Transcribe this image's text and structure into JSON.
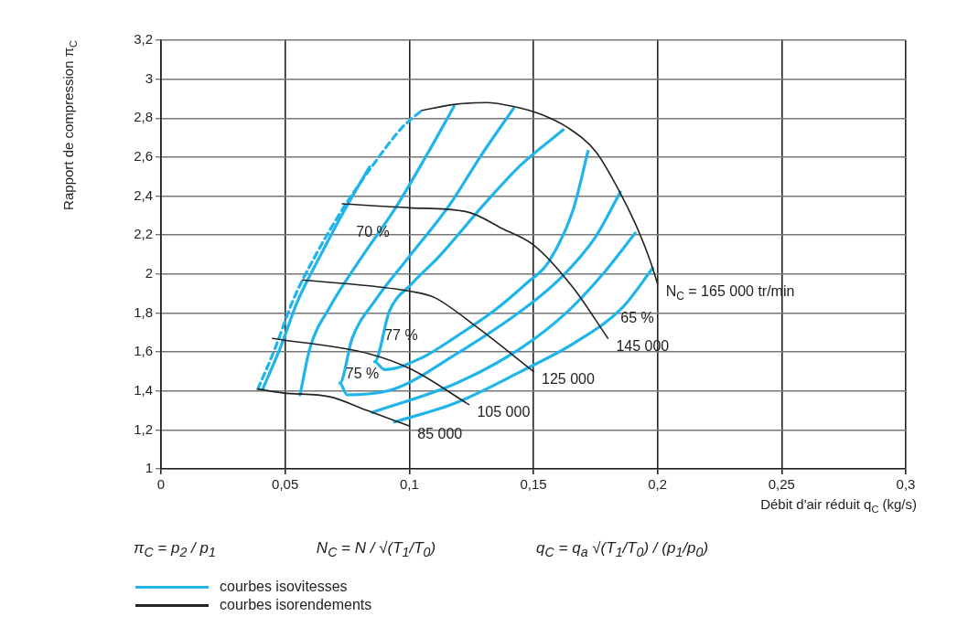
{
  "chart_data": {
    "type": "line",
    "xlabel": "Débit d'air réduit q$_{C}$ (kg/s)",
    "ylabel": "Rapport de compression π$_{C}$",
    "xlim": [
      0,
      0.3
    ],
    "xticks": [
      0,
      {
        "value": 0.05,
        "label": "0,05"
      },
      {
        "value": 0.1,
        "label": "0,1"
      },
      {
        "value": 0.15,
        "label": "0,15"
      },
      {
        "value": 0.2,
        "label": "0,2"
      },
      {
        "value": 0.25,
        "label": "0,25"
      },
      {
        "value": 0.3,
        "label": "0,3"
      }
    ],
    "ylim": [
      1,
      3.2
    ],
    "yticks": [
      1,
      {
        "value": 1.2,
        "label": "1,2"
      },
      {
        "value": 1.4,
        "label": "1,4"
      },
      {
        "value": 1.6,
        "label": "1,6"
      },
      {
        "value": 1.8,
        "label": "1,8"
      },
      2,
      {
        "value": 2.2,
        "label": "2,2"
      },
      {
        "value": 2.4,
        "label": "2,4"
      },
      {
        "value": 2.6,
        "label": "2,6"
      },
      {
        "value": 2.8,
        "label": "2,8"
      },
      3,
      {
        "value": 3.2,
        "label": "3,2"
      }
    ],
    "grid": true,
    "legend": "bottom left",
    "marker": "none",
    "series": [
      {
        "name": "courbes isovitesses",
        "color": "#1fb5ea",
        "line_style": "dashed",
        "x": [
          0.039,
          0.046,
          0.053,
          0.062,
          0.073,
          0.086,
          0.097,
          0.105
        ],
        "values": [
          1.41,
          1.62,
          1.86,
          2.09,
          2.33,
          2.57,
          2.75,
          2.84
        ]
      },
      {
        "color": "#1fb5ea",
        "x": [
          0.041,
          0.048,
          0.055,
          0.064,
          0.074,
          0.084
        ],
        "values": [
          1.41,
          1.62,
          1.86,
          2.09,
          2.33,
          2.55
        ]
      },
      {
        "color": "#1fb5ea",
        "x": [
          0.056,
          0.06,
          0.068,
          0.081,
          0.094,
          0.107,
          0.118
        ],
        "values": [
          1.38,
          1.62,
          1.83,
          2.09,
          2.33,
          2.61,
          2.86
        ]
      },
      {
        "color": "#1fb5ea",
        "x": [
          0.142,
          0.129,
          0.116,
          0.1,
          0.086,
          0.077,
          0.072,
          0.075,
          0.094,
          0.119,
          0.145,
          0.161,
          0.175,
          0.185
        ],
        "values": [
          2.85,
          2.61,
          2.35,
          2.09,
          1.86,
          1.67,
          1.44,
          1.38,
          1.41,
          1.59,
          1.81,
          1.98,
          2.19,
          2.42
        ]
      },
      {
        "color": "#1fb5ea",
        "x": [
          0.162,
          0.145,
          0.131,
          0.112,
          0.101,
          0.092,
          0.086,
          0.09,
          0.105,
          0.119,
          0.134,
          0.147,
          0.156,
          0.166,
          0.172
        ],
        "values": [
          2.74,
          2.56,
          2.37,
          2.09,
          1.95,
          1.81,
          1.55,
          1.51,
          1.57,
          1.68,
          1.81,
          1.95,
          2.06,
          2.33,
          2.63
        ]
      },
      {
        "color": "#1fb5ea",
        "x": [
          0.085,
          0.119,
          0.145,
          0.164,
          0.178,
          0.191
        ],
        "values": [
          1.29,
          1.44,
          1.62,
          1.81,
          2.0,
          2.21
        ]
      },
      {
        "color": "#1fb5ea",
        "x": [
          0.094,
          0.119,
          0.145,
          0.167,
          0.186,
          0.198
        ],
        "values": [
          1.24,
          1.34,
          1.5,
          1.65,
          1.83,
          2.03
        ]
      },
      {
        "name": "courbes isorendements",
        "color": "#222222",
        "x": [
          0.105,
          0.118,
          0.131,
          0.142,
          0.153,
          0.164,
          0.175,
          0.184,
          0.191,
          0.197,
          0.2
        ],
        "values": [
          2.84,
          2.87,
          2.88,
          2.86,
          2.82,
          2.75,
          2.63,
          2.44,
          2.26,
          2.07,
          1.95
        ]
      },
      {
        "color": "#222222",
        "x": [
          0.039,
          0.049,
          0.068,
          0.083,
          0.1
        ],
        "values": [
          1.41,
          1.39,
          1.37,
          1.3,
          1.22
        ]
      },
      {
        "color": "#222222",
        "x": [
          0.045,
          0.084,
          0.101,
          0.124
        ],
        "values": [
          1.67,
          1.59,
          1.51,
          1.33
        ]
      },
      {
        "color": "#222222",
        "x": [
          0.057,
          0.101,
          0.11,
          0.127,
          0.15
        ],
        "values": [
          1.97,
          1.91,
          1.88,
          1.73,
          1.5
        ]
      },
      {
        "color": "#222222",
        "x": [
          0.073,
          0.1,
          0.123,
          0.138,
          0.15,
          0.166,
          0.18
        ],
        "values": [
          2.36,
          2.34,
          2.32,
          2.23,
          2.15,
          1.93,
          1.67
        ]
      }
    ],
    "annotations": [
      "70 %",
      "77 %",
      "75 %",
      "65 %",
      {
        "text": "85 000",
        "x": 0.1,
        "y": 1.22
      },
      {
        "text": "105 000",
        "x": 0.124,
        "y": 1.33
      },
      {
        "text": "125 000",
        "x": 0.15,
        "y": 1.5
      },
      {
        "text": "145 000",
        "x": 0.18,
        "y": 1.67
      },
      {
        "text": "N$_{C}$ = 165 000 tr/min",
        "x": 0.2,
        "y": 1.95
      },
      "π$_{C}$ = p$_{2}$ / p$_{1}$",
      "N$_{C}$ = N / √(T$_{1}$/T$_{0}$)",
      "q$_{C}$ = q$_{a}$ √(T$_{1}$/T$_{0}$) / (p$_{1}$/p$_{0}$)"
    ]
  }
}
